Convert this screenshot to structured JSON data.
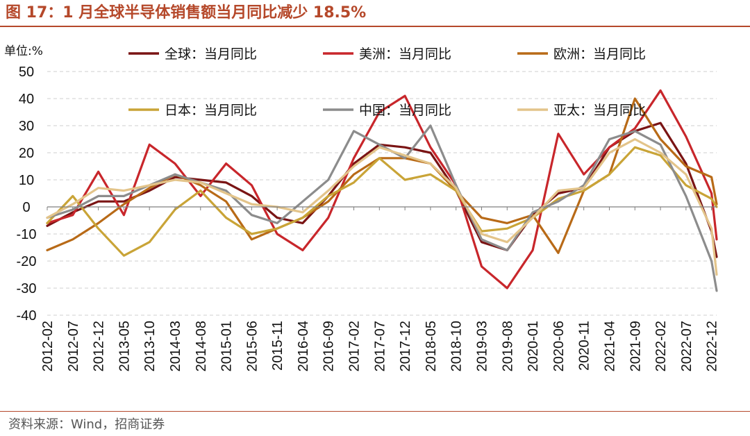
{
  "title": "图 17：1 月全球半导体销售额当月同比减少 18.5%",
  "source": "资料来源：Wind，招商证券",
  "chart_data": {
    "type": "line",
    "title": "图 17：1 月全球半导体销售额当月同比减少 18.5%",
    "ylabel": "单位:%",
    "xlabel": "",
    "ylim": [
      -40,
      50
    ],
    "yticks": [
      50,
      40,
      30,
      20,
      10,
      0,
      -10,
      -20,
      -30,
      -40
    ],
    "x_start": "2012-02",
    "x_end": "2023-01",
    "xticks": [
      "2012-02",
      "2012-07",
      "2012-12",
      "2013-05",
      "2013-10",
      "2014-03",
      "2014-08",
      "2015-01",
      "2015-06",
      "2015-11",
      "2016-04",
      "2016-09",
      "2017-02",
      "2017-07",
      "2017-12",
      "2018-05",
      "2018-10",
      "2019-03",
      "2019-08",
      "2020-01",
      "2020-06",
      "2020-11",
      "2021-04",
      "2021-09",
      "2022-02",
      "2022-07",
      "2022-12"
    ],
    "grid": "horizontal-dashed",
    "legend_position": "top",
    "series": [
      {
        "name": "全球：当月同比",
        "color": "#7a1414",
        "points": [
          [
            "2012-02",
            -7
          ],
          [
            "2012-07",
            -2
          ],
          [
            "2012-12",
            2
          ],
          [
            "2013-05",
            2
          ],
          [
            "2013-10",
            6
          ],
          [
            "2014-03",
            11
          ],
          [
            "2014-08",
            10
          ],
          [
            "2015-01",
            9
          ],
          [
            "2015-06",
            4
          ],
          [
            "2015-11",
            -4
          ],
          [
            "2016-04",
            -6
          ],
          [
            "2016-09",
            4
          ],
          [
            "2017-02",
            16
          ],
          [
            "2017-07",
            23
          ],
          [
            "2017-12",
            22
          ],
          [
            "2018-05",
            20
          ],
          [
            "2018-10",
            6
          ],
          [
            "2019-03",
            -13
          ],
          [
            "2019-08",
            -16
          ],
          [
            "2020-01",
            -3
          ],
          [
            "2020-06",
            5
          ],
          [
            "2020-11",
            7
          ],
          [
            "2021-04",
            22
          ],
          [
            "2021-09",
            28
          ],
          [
            "2022-02",
            31
          ],
          [
            "2022-07",
            16
          ],
          [
            "2022-12",
            -9
          ],
          [
            "2023-01",
            -18.5
          ]
        ]
      },
      {
        "name": "美洲：当月同比",
        "color": "#c8262b",
        "points": [
          [
            "2012-02",
            -6
          ],
          [
            "2012-07",
            -3
          ],
          [
            "2012-12",
            13
          ],
          [
            "2013-05",
            -3
          ],
          [
            "2013-10",
            23
          ],
          [
            "2014-03",
            16
          ],
          [
            "2014-08",
            4
          ],
          [
            "2015-01",
            16
          ],
          [
            "2015-06",
            8
          ],
          [
            "2015-11",
            -10
          ],
          [
            "2016-04",
            -16
          ],
          [
            "2016-09",
            -4
          ],
          [
            "2017-02",
            18
          ],
          [
            "2017-07",
            35
          ],
          [
            "2017-12",
            41
          ],
          [
            "2018-05",
            22
          ],
          [
            "2018-10",
            8
          ],
          [
            "2019-03",
            -22
          ],
          [
            "2019-08",
            -30
          ],
          [
            "2020-01",
            -16
          ],
          [
            "2020-06",
            27
          ],
          [
            "2020-11",
            12
          ],
          [
            "2021-04",
            22
          ],
          [
            "2021-09",
            29
          ],
          [
            "2022-02",
            43
          ],
          [
            "2022-07",
            26
          ],
          [
            "2022-12",
            5
          ],
          [
            "2023-01",
            -12
          ]
        ]
      },
      {
        "name": "欧洲：当月同比",
        "color": "#b86a17",
        "points": [
          [
            "2012-02",
            -16
          ],
          [
            "2012-07",
            -12
          ],
          [
            "2012-12",
            -6
          ],
          [
            "2013-05",
            1
          ],
          [
            "2013-10",
            7
          ],
          [
            "2014-03",
            12
          ],
          [
            "2014-08",
            8
          ],
          [
            "2015-01",
            2
          ],
          [
            "2015-06",
            -12
          ],
          [
            "2015-11",
            -8
          ],
          [
            "2016-04",
            -4
          ],
          [
            "2016-09",
            2
          ],
          [
            "2017-02",
            12
          ],
          [
            "2017-07",
            18
          ],
          [
            "2017-12",
            18
          ],
          [
            "2018-05",
            16
          ],
          [
            "2018-10",
            6
          ],
          [
            "2019-03",
            -4
          ],
          [
            "2019-08",
            -6
          ],
          [
            "2020-01",
            -3
          ],
          [
            "2020-06",
            -17
          ],
          [
            "2020-11",
            6
          ],
          [
            "2021-04",
            12
          ],
          [
            "2021-09",
            40
          ],
          [
            "2022-02",
            25
          ],
          [
            "2022-07",
            15
          ],
          [
            "2022-12",
            11
          ],
          [
            "2023-01",
            1
          ]
        ]
      },
      {
        "name": "日本：当月同比",
        "color": "#c9a437",
        "points": [
          [
            "2012-02",
            -6
          ],
          [
            "2012-07",
            4
          ],
          [
            "2012-12",
            -8
          ],
          [
            "2013-05",
            -18
          ],
          [
            "2013-10",
            -13
          ],
          [
            "2014-03",
            -1
          ],
          [
            "2014-08",
            6
          ],
          [
            "2015-01",
            -4
          ],
          [
            "2015-06",
            -10
          ],
          [
            "2015-11",
            -8
          ],
          [
            "2016-04",
            -4
          ],
          [
            "2016-09",
            4
          ],
          [
            "2017-02",
            9
          ],
          [
            "2017-07",
            18
          ],
          [
            "2017-12",
            10
          ],
          [
            "2018-05",
            12
          ],
          [
            "2018-10",
            6
          ],
          [
            "2019-03",
            -9
          ],
          [
            "2019-08",
            -8
          ],
          [
            "2020-01",
            -4
          ],
          [
            "2020-06",
            3
          ],
          [
            "2020-11",
            6
          ],
          [
            "2021-04",
            12
          ],
          [
            "2021-09",
            22
          ],
          [
            "2022-02",
            19
          ],
          [
            "2022-07",
            8
          ],
          [
            "2022-12",
            3
          ],
          [
            "2023-01",
            0
          ]
        ]
      },
      {
        "name": "中国：当月同比",
        "color": "#8c8c8c",
        "points": [
          [
            "2012-02",
            -4
          ],
          [
            "2012-07",
            -1
          ],
          [
            "2012-12",
            4
          ],
          [
            "2013-05",
            4
          ],
          [
            "2013-10",
            8
          ],
          [
            "2014-03",
            12
          ],
          [
            "2014-08",
            9
          ],
          [
            "2015-01",
            6
          ],
          [
            "2015-06",
            -3
          ],
          [
            "2015-11",
            -6
          ],
          [
            "2016-04",
            2
          ],
          [
            "2016-09",
            10
          ],
          [
            "2017-02",
            28
          ],
          [
            "2017-07",
            23
          ],
          [
            "2017-12",
            18
          ],
          [
            "2018-05",
            30
          ],
          [
            "2018-10",
            8
          ],
          [
            "2019-03",
            -12
          ],
          [
            "2019-08",
            -16
          ],
          [
            "2020-01",
            -2
          ],
          [
            "2020-06",
            2
          ],
          [
            "2020-11",
            8
          ],
          [
            "2021-04",
            25
          ],
          [
            "2021-09",
            28
          ],
          [
            "2022-02",
            23
          ],
          [
            "2022-07",
            4
          ],
          [
            "2022-12",
            -20
          ],
          [
            "2023-01",
            -31
          ]
        ]
      },
      {
        "name": "亚太：当月同比",
        "color": "#e3c48a",
        "points": [
          [
            "2012-02",
            -4
          ],
          [
            "2012-07",
            1
          ],
          [
            "2012-12",
            7
          ],
          [
            "2013-05",
            6
          ],
          [
            "2013-10",
            8
          ],
          [
            "2014-03",
            10
          ],
          [
            "2014-08",
            9
          ],
          [
            "2015-01",
            5
          ],
          [
            "2015-06",
            1
          ],
          [
            "2015-11",
            0
          ],
          [
            "2016-04",
            -2
          ],
          [
            "2016-09",
            6
          ],
          [
            "2017-02",
            15
          ],
          [
            "2017-07",
            22
          ],
          [
            "2017-12",
            19
          ],
          [
            "2018-05",
            16
          ],
          [
            "2018-10",
            7
          ],
          [
            "2019-03",
            -10
          ],
          [
            "2019-08",
            -13
          ],
          [
            "2020-01",
            -4
          ],
          [
            "2020-06",
            6
          ],
          [
            "2020-11",
            7
          ],
          [
            "2021-04",
            20
          ],
          [
            "2021-09",
            25
          ],
          [
            "2022-02",
            20
          ],
          [
            "2022-07",
            12
          ],
          [
            "2022-12",
            -8
          ],
          [
            "2023-01",
            -25
          ]
        ]
      }
    ]
  }
}
